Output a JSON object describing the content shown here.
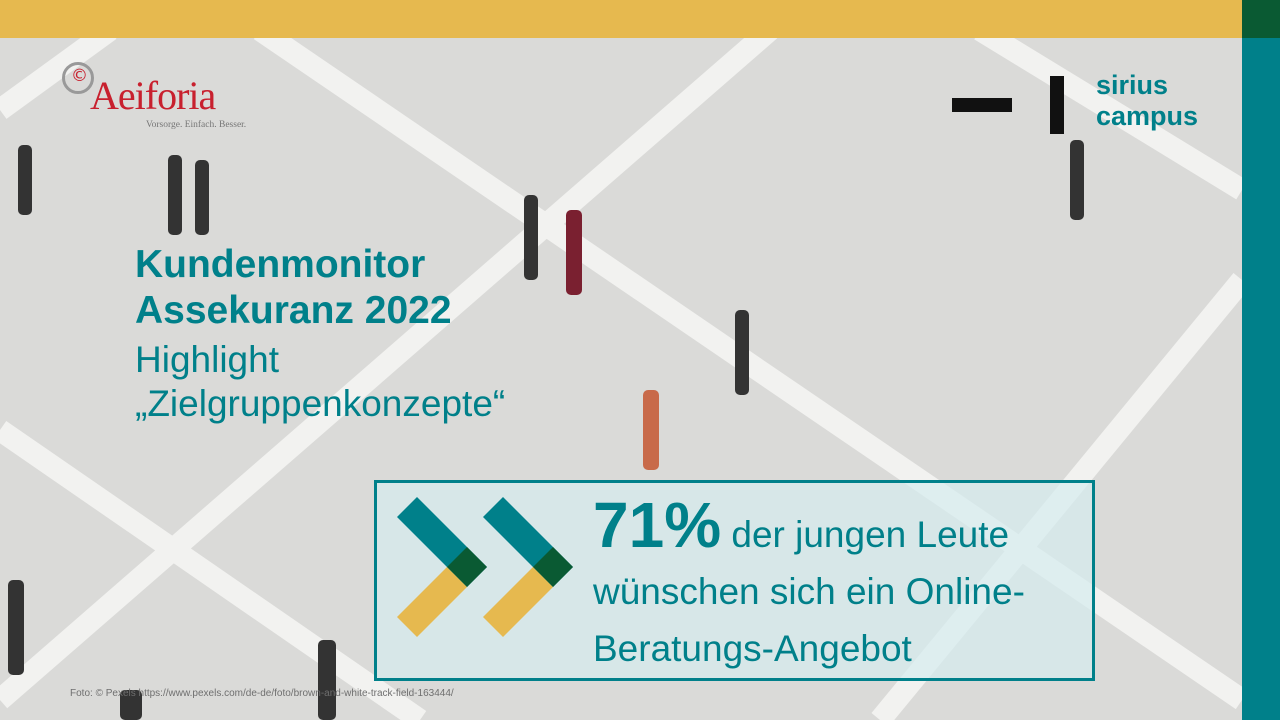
{
  "colors": {
    "accent_yellow": "#e6b94f",
    "teal": "#00808a",
    "dark_green": "#0a5a33",
    "aeiforia_red": "#c8202e"
  },
  "logos": {
    "aeiforia": {
      "name": "Aeiforia",
      "tagline": "Vorsorge. Einfach. Besser."
    },
    "sirius": {
      "line1": "sirius",
      "line2": "campus"
    }
  },
  "title": {
    "line1": "Kundenmonitor",
    "line2": "Assekuranz 2022",
    "sub1": "Highlight",
    "sub2": "„Zielgruppenkonzepte“"
  },
  "highlight": {
    "percent": "71%",
    "text1": " der jungen Leute",
    "text2": "wünschen sich ein Online-",
    "text3": "Beratungs-Angebot"
  },
  "credit": "Foto: © Pexels https://www.pexels.com/de-de/foto/brown-and-white-track-field-163444/"
}
